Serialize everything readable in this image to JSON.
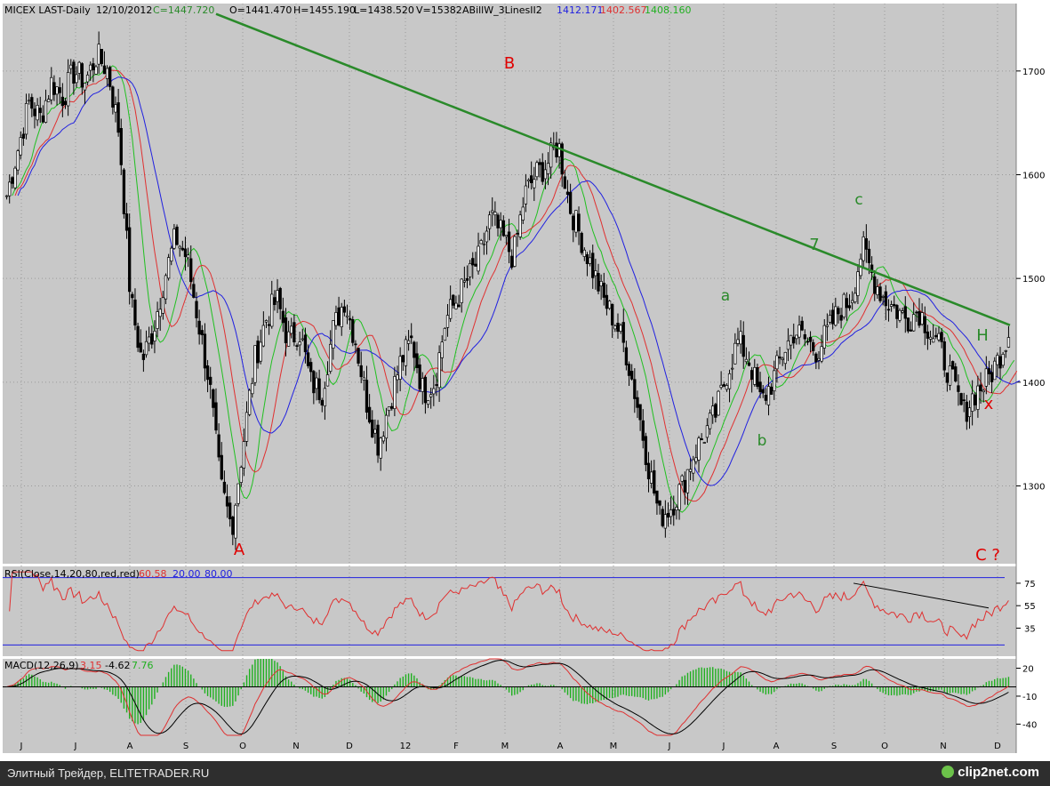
{
  "header": {
    "symbol": "MICEX LAST-Daily",
    "date": "12/10/2012",
    "close": "C=1447.720",
    "open": "O=1441.470",
    "high": "H=1455.190",
    "low": "L=1438.520",
    "volume": "V=15382",
    "indicator": "ABillW_3LinesII2",
    "ind_blue": "1412.171",
    "ind_red": "1402.567",
    "ind_green": "1408.160"
  },
  "rsi_header": {
    "label": "RSI(Close,14,20,80,red,red)",
    "value": "60.58",
    "lower": "20.00",
    "upper": "80.00"
  },
  "macd_header": {
    "label": "MACD(12,26,9)",
    "macd": "3.15",
    "signal": "-4.62",
    "hist": "7.76"
  },
  "footer": {
    "text": "Элитный Трейдер, ELITETRADER.RU",
    "brand": "clip2net.com"
  },
  "colors": {
    "background": "#c8c8c8",
    "up": "#000000",
    "green_line": "#2a8a2a",
    "red_line": "#e03030",
    "blue_line": "#2020e0",
    "ma_green": "#20c020"
  },
  "chart_data": [
    {
      "type": "candlestick",
      "title": "MICEX LAST-Daily",
      "x_ticks": [
        "J",
        "J",
        "A",
        "S",
        "O",
        "N",
        "D",
        "12",
        "F",
        "M",
        "A",
        "M",
        "J",
        "J",
        "A",
        "S",
        "O",
        "N",
        "D"
      ],
      "y_ticks": [
        1300,
        1400,
        1500,
        1600,
        1700
      ],
      "ylim": [
        1225,
        1765
      ],
      "series": [
        {
          "name": "MICEX",
          "values": [
            1580,
            1625,
            1670,
            1655,
            1690,
            1675,
            1700,
            1690,
            1715,
            1700,
            1640,
            1480,
            1420,
            1450,
            1500,
            1540,
            1520,
            1460,
            1400,
            1300,
            1260,
            1340,
            1420,
            1460,
            1480,
            1440,
            1450,
            1400,
            1390,
            1450,
            1480,
            1440,
            1380,
            1340,
            1380,
            1420,
            1440,
            1390,
            1400,
            1460,
            1480,
            1500,
            1520,
            1560,
            1540,
            1520,
            1580,
            1600,
            1610,
            1630,
            1570,
            1540,
            1510,
            1480,
            1460,
            1430,
            1380,
            1320,
            1270,
            1280,
            1300,
            1330,
            1350,
            1370,
            1410,
            1440,
            1420,
            1380,
            1400,
            1430,
            1450,
            1440,
            1430,
            1450,
            1470,
            1480,
            1530,
            1500,
            1480,
            1470,
            1460,
            1470,
            1450,
            1430,
            1400,
            1370,
            1390,
            1400,
            1420,
            1448
          ]
        }
      ],
      "annotations": [
        {
          "text": "A",
          "color": "#e00000"
        },
        {
          "text": "B",
          "color": "#e00000"
        },
        {
          "text": "a",
          "color": "#2a8a2a"
        },
        {
          "text": "b",
          "color": "#2a8a2a"
        },
        {
          "text": "c",
          "color": "#2a8a2a"
        },
        {
          "text": "7",
          "color": "#2a8a2a"
        },
        {
          "text": "H",
          "color": "#2a8a2a"
        },
        {
          "text": "x",
          "color": "#e00000"
        },
        {
          "text": "C ?",
          "color": "#e00000"
        }
      ],
      "trendline": {
        "from": [
          "J",
          1755
        ],
        "to": [
          "D",
          1455
        ]
      }
    },
    {
      "type": "line",
      "title": "RSI(Close,14,20,80,red,red)",
      "y_ticks": [
        35,
        55,
        75
      ],
      "ylim": [
        20,
        80
      ],
      "levels": [
        20,
        80
      ]
    },
    {
      "type": "bar",
      "title": "MACD(12,26,9)",
      "y_ticks": [
        20,
        -10,
        -40
      ],
      "ylim": [
        -52,
        30
      ]
    }
  ]
}
